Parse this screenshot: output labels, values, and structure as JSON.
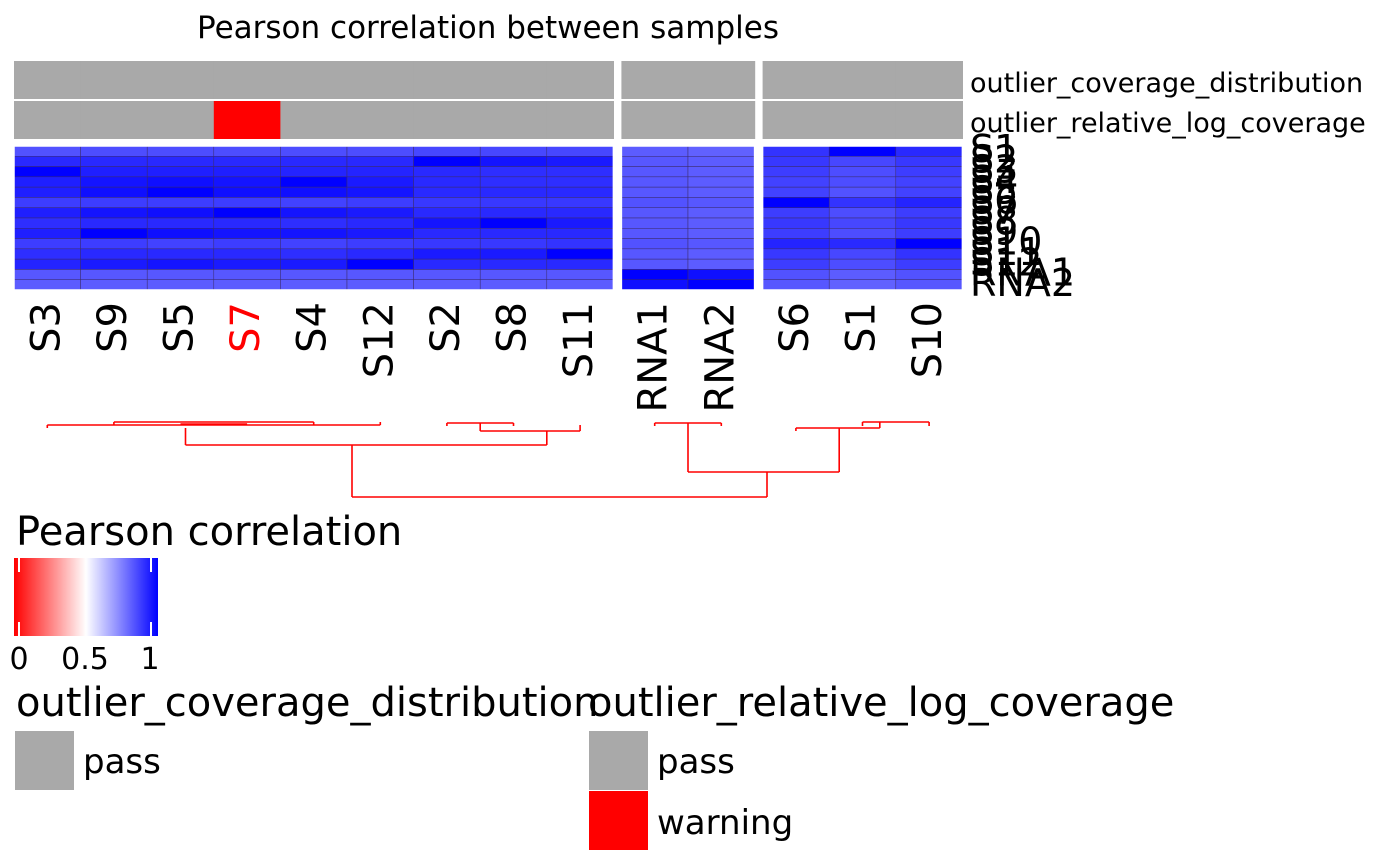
{
  "chart_data": {
    "type": "heatmap",
    "title": "Pearson correlation between samples",
    "columns": [
      "S3",
      "S9",
      "S5",
      "S7",
      "S4",
      "S12",
      "S2",
      "S8",
      "S11",
      "RNA1",
      "RNA2",
      "S6",
      "S1",
      "S10"
    ],
    "column_label_colors": [
      "#000000",
      "#000000",
      "#000000",
      "#ff0000",
      "#000000",
      "#000000",
      "#000000",
      "#000000",
      "#000000",
      "#000000",
      "#000000",
      "#000000",
      "#000000",
      "#000000"
    ],
    "column_groups": [
      [
        "S3",
        "S9",
        "S5",
        "S7",
        "S4",
        "S12",
        "S2",
        "S8",
        "S11"
      ],
      [
        "RNA1",
        "RNA2"
      ],
      [
        "S6",
        "S1",
        "S10"
      ]
    ],
    "rows": [
      "S1",
      "S2",
      "S3",
      "S4",
      "S5",
      "S6",
      "S7",
      "S8",
      "S9",
      "S10",
      "S11",
      "S12",
      "RNA1",
      "RNA2"
    ],
    "values": [
      [
        0.84,
        0.85,
        0.85,
        0.85,
        0.85,
        0.85,
        0.86,
        0.86,
        0.86,
        0.82,
        0.81,
        0.9,
        1.0,
        0.92
      ],
      [
        0.92,
        0.92,
        0.92,
        0.92,
        0.92,
        0.92,
        1.0,
        0.96,
        0.95,
        0.83,
        0.82,
        0.89,
        0.86,
        0.89
      ],
      [
        1.0,
        0.94,
        0.94,
        0.94,
        0.93,
        0.93,
        0.92,
        0.91,
        0.91,
        0.83,
        0.82,
        0.88,
        0.85,
        0.88
      ],
      [
        0.94,
        0.96,
        0.97,
        0.96,
        1.0,
        0.95,
        0.92,
        0.91,
        0.91,
        0.83,
        0.82,
        0.87,
        0.85,
        0.87
      ],
      [
        0.94,
        0.97,
        1.0,
        0.97,
        0.97,
        0.96,
        0.92,
        0.92,
        0.92,
        0.83,
        0.82,
        0.87,
        0.84,
        0.87
      ],
      [
        0.88,
        0.88,
        0.88,
        0.88,
        0.87,
        0.88,
        0.89,
        0.89,
        0.89,
        0.84,
        0.83,
        1.0,
        0.9,
        0.93
      ],
      [
        0.94,
        0.96,
        0.97,
        1.0,
        0.96,
        0.95,
        0.92,
        0.92,
        0.92,
        0.83,
        0.82,
        0.88,
        0.85,
        0.88
      ],
      [
        0.91,
        0.92,
        0.92,
        0.92,
        0.91,
        0.92,
        0.96,
        1.0,
        0.95,
        0.83,
        0.82,
        0.89,
        0.86,
        0.89
      ],
      [
        0.94,
        1.0,
        0.97,
        0.96,
        0.96,
        0.95,
        0.92,
        0.92,
        0.92,
        0.83,
        0.82,
        0.88,
        0.85,
        0.88
      ],
      [
        0.88,
        0.88,
        0.87,
        0.88,
        0.87,
        0.88,
        0.89,
        0.89,
        0.9,
        0.84,
        0.83,
        0.93,
        0.92,
        1.0
      ],
      [
        0.91,
        0.92,
        0.92,
        0.92,
        0.91,
        0.92,
        0.95,
        0.95,
        1.0,
        0.83,
        0.82,
        0.89,
        0.86,
        0.9
      ],
      [
        0.93,
        0.95,
        0.96,
        0.95,
        0.95,
        1.0,
        0.92,
        0.92,
        0.92,
        0.83,
        0.82,
        0.88,
        0.85,
        0.88
      ],
      [
        0.83,
        0.83,
        0.83,
        0.83,
        0.83,
        0.83,
        0.83,
        0.83,
        0.83,
        1.0,
        0.97,
        0.84,
        0.82,
        0.84
      ],
      [
        0.82,
        0.82,
        0.82,
        0.82,
        0.82,
        0.82,
        0.82,
        0.82,
        0.82,
        0.97,
        1.0,
        0.83,
        0.81,
        0.83
      ]
    ],
    "annotations": [
      {
        "name": "outlier_coverage_distribution",
        "values": [
          "pass",
          "pass",
          "pass",
          "pass",
          "pass",
          "pass",
          "pass",
          "pass",
          "pass",
          "pass",
          "pass",
          "pass",
          "pass",
          "pass"
        ]
      },
      {
        "name": "outlier_relative_log_coverage",
        "values": [
          "pass",
          "pass",
          "pass",
          "warning",
          "pass",
          "pass",
          "pass",
          "pass",
          "pass",
          "pass",
          "pass",
          "pass",
          "pass",
          "pass"
        ]
      }
    ],
    "color_scale": {
      "title": "Pearson correlation",
      "stops": [
        [
          0,
          "#ff0000"
        ],
        [
          0.5,
          "#ffffff"
        ],
        [
          1,
          "#0000ff"
        ]
      ],
      "ticks": [
        "0",
        "0.5",
        "1"
      ]
    },
    "legends": [
      {
        "title": "outlier_coverage_distribution",
        "entries": [
          {
            "label": "pass",
            "color": "#a9a9a9"
          }
        ]
      },
      {
        "title": "outlier_relative_log_coverage",
        "entries": [
          {
            "label": "pass",
            "color": "#a9a9a9"
          },
          {
            "label": "warning",
            "color": "#ff0000"
          }
        ]
      }
    ],
    "dendrogram_color": "#ff0000"
  }
}
